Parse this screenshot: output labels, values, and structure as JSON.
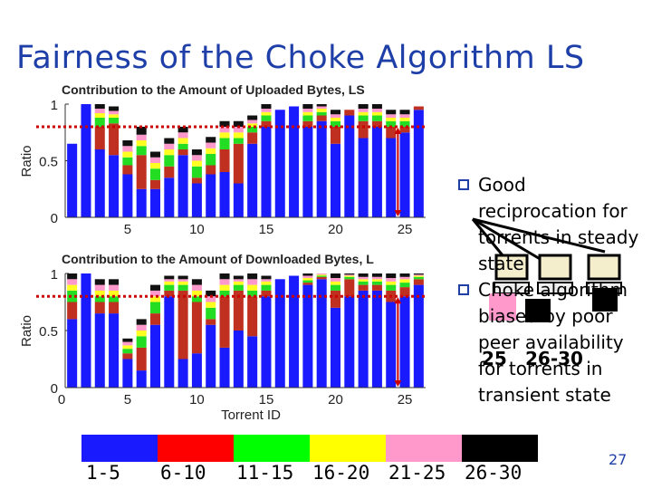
{
  "slide": {
    "title": "Fairness of the Choke Algorithm LS",
    "page_number": "27"
  },
  "bullets": [
    {
      "text": "Good reciprocation for torrents in steady state"
    },
    {
      "text": "Choke algorithm biased by poor peer availability for torrents in transient state"
    }
  ],
  "overlay_labels": [
    "25",
    "26-30"
  ],
  "legend": {
    "items": [
      {
        "label": "1-5",
        "color": "#1a1aff"
      },
      {
        "label": "6-10",
        "color": "#ff0000"
      },
      {
        "label": "11-15",
        "color": "#00ff00"
      },
      {
        "label": "16-20",
        "color": "#ffff00"
      },
      {
        "label": "21-25",
        "color": "#ff99cc"
      },
      {
        "label": "26-30",
        "color": "#000000"
      }
    ]
  },
  "colors": {
    "series": [
      "#1a1aff",
      "#c03020",
      "#22dd22",
      "#ffff22",
      "#ff99cc",
      "#111111"
    ],
    "reference_line": "#cc0000",
    "arrow": "#cc0000"
  },
  "chart_data": [
    {
      "type": "bar",
      "stacked": true,
      "title": "Contribution to the Amount of Uploaded Bytes, LS",
      "xlabel": "",
      "ylabel": "Ratio",
      "ylim": [
        0,
        1
      ],
      "yticks": [
        "0",
        "0.5",
        "1"
      ],
      "xticks": [
        "5",
        "10",
        "15",
        "20",
        "25"
      ],
      "reference_value": 0.8,
      "x": [
        1,
        2,
        3,
        4,
        5,
        6,
        7,
        8,
        9,
        10,
        11,
        12,
        13,
        14,
        15,
        16,
        17,
        18,
        19,
        20,
        21,
        22,
        23,
        24,
        25,
        26
      ],
      "series": [
        {
          "values": [
            0.65,
            1.0,
            0.6,
            0.55,
            0.38,
            0.25,
            0.25,
            0.35,
            0.55,
            0.3,
            0.38,
            0.4,
            0.3,
            0.65,
            0.8,
            0.95,
            0.98,
            0.8,
            0.85,
            0.65,
            0.9,
            0.7,
            0.8,
            0.7,
            0.75,
            0.95
          ]
        },
        {
          "values": [
            0.0,
            0.0,
            0.2,
            0.28,
            0.08,
            0.3,
            0.08,
            0.1,
            0.05,
            0.05,
            0.08,
            0.2,
            0.35,
            0.1,
            0.05,
            0.0,
            0.0,
            0.05,
            0.05,
            0.15,
            0.05,
            0.15,
            0.05,
            0.1,
            0.05,
            0.03
          ]
        },
        {
          "values": [
            0.0,
            0.0,
            0.08,
            0.05,
            0.07,
            0.08,
            0.1,
            0.1,
            0.05,
            0.1,
            0.1,
            0.1,
            0.05,
            0.05,
            0.05,
            0.0,
            0.0,
            0.05,
            0.03,
            0.05,
            0.0,
            0.05,
            0.05,
            0.05,
            0.05,
            0.0
          ]
        },
        {
          "values": [
            0.0,
            0.0,
            0.04,
            0.03,
            0.05,
            0.05,
            0.05,
            0.05,
            0.05,
            0.05,
            0.05,
            0.05,
            0.05,
            0.03,
            0.03,
            0.0,
            0.0,
            0.03,
            0.03,
            0.03,
            0.0,
            0.03,
            0.03,
            0.03,
            0.03,
            0.0
          ]
        },
        {
          "values": [
            0.0,
            0.0,
            0.04,
            0.03,
            0.05,
            0.05,
            0.05,
            0.05,
            0.05,
            0.05,
            0.05,
            0.05,
            0.05,
            0.03,
            0.03,
            0.0,
            0.0,
            0.03,
            0.02,
            0.03,
            0.0,
            0.03,
            0.03,
            0.03,
            0.03,
            0.0
          ]
        },
        {
          "values": [
            0.0,
            0.0,
            0.04,
            0.04,
            0.05,
            0.07,
            0.05,
            0.05,
            0.05,
            0.05,
            0.05,
            0.05,
            0.05,
            0.04,
            0.04,
            0.0,
            0.0,
            0.04,
            0.02,
            0.04,
            0.0,
            0.04,
            0.04,
            0.04,
            0.04,
            0.0
          ]
        }
      ]
    },
    {
      "type": "bar",
      "stacked": true,
      "title": "Contribution to the Amount of Downloaded Bytes, L",
      "xlabel": "Torrent ID",
      "ylabel": "Ratio",
      "ylim": [
        0,
        1
      ],
      "yticks": [
        "0",
        "0.5",
        "1"
      ],
      "xticks": [
        "0",
        "5",
        "10",
        "15",
        "20",
        "25"
      ],
      "reference_value": 0.8,
      "x": [
        1,
        2,
        3,
        4,
        5,
        6,
        7,
        8,
        9,
        10,
        11,
        12,
        13,
        14,
        15,
        16,
        17,
        18,
        19,
        20,
        21,
        22,
        23,
        24,
        25,
        26
      ],
      "series": [
        {
          "values": [
            0.6,
            1.0,
            0.65,
            0.65,
            0.25,
            0.15,
            0.55,
            0.8,
            0.25,
            0.3,
            0.55,
            0.35,
            0.5,
            0.45,
            0.8,
            0.95,
            0.98,
            0.9,
            0.95,
            0.7,
            0.8,
            0.85,
            0.85,
            0.75,
            0.8,
            0.9
          ]
        },
        {
          "values": [
            0.15,
            0.0,
            0.1,
            0.1,
            0.05,
            0.2,
            0.1,
            0.05,
            0.6,
            0.45,
            0.05,
            0.45,
            0.35,
            0.35,
            0.05,
            0.0,
            0.0,
            0.02,
            0.02,
            0.15,
            0.15,
            0.05,
            0.05,
            0.1,
            0.08,
            0.05
          ]
        },
        {
          "values": [
            0.1,
            0.0,
            0.05,
            0.05,
            0.04,
            0.1,
            0.1,
            0.05,
            0.05,
            0.05,
            0.1,
            0.05,
            0.05,
            0.05,
            0.05,
            0.0,
            0.0,
            0.02,
            0.01,
            0.05,
            0.02,
            0.03,
            0.03,
            0.05,
            0.04,
            0.02
          ]
        },
        {
          "values": [
            0.05,
            0.0,
            0.05,
            0.05,
            0.03,
            0.05,
            0.05,
            0.03,
            0.03,
            0.05,
            0.05,
            0.05,
            0.03,
            0.05,
            0.03,
            0.0,
            0.0,
            0.02,
            0.01,
            0.03,
            0.01,
            0.02,
            0.02,
            0.03,
            0.03,
            0.01
          ]
        },
        {
          "values": [
            0.05,
            0.0,
            0.05,
            0.05,
            0.03,
            0.05,
            0.05,
            0.02,
            0.02,
            0.05,
            0.05,
            0.05,
            0.02,
            0.05,
            0.02,
            0.0,
            0.0,
            0.02,
            0.01,
            0.03,
            0.01,
            0.02,
            0.02,
            0.03,
            0.02,
            0.01
          ]
        },
        {
          "values": [
            0.05,
            0.0,
            0.05,
            0.05,
            0.03,
            0.05,
            0.05,
            0.03,
            0.03,
            0.05,
            0.05,
            0.05,
            0.03,
            0.05,
            0.03,
            0.0,
            0.0,
            0.02,
            0.0,
            0.04,
            0.01,
            0.03,
            0.03,
            0.04,
            0.03,
            0.01
          ]
        }
      ]
    }
  ]
}
